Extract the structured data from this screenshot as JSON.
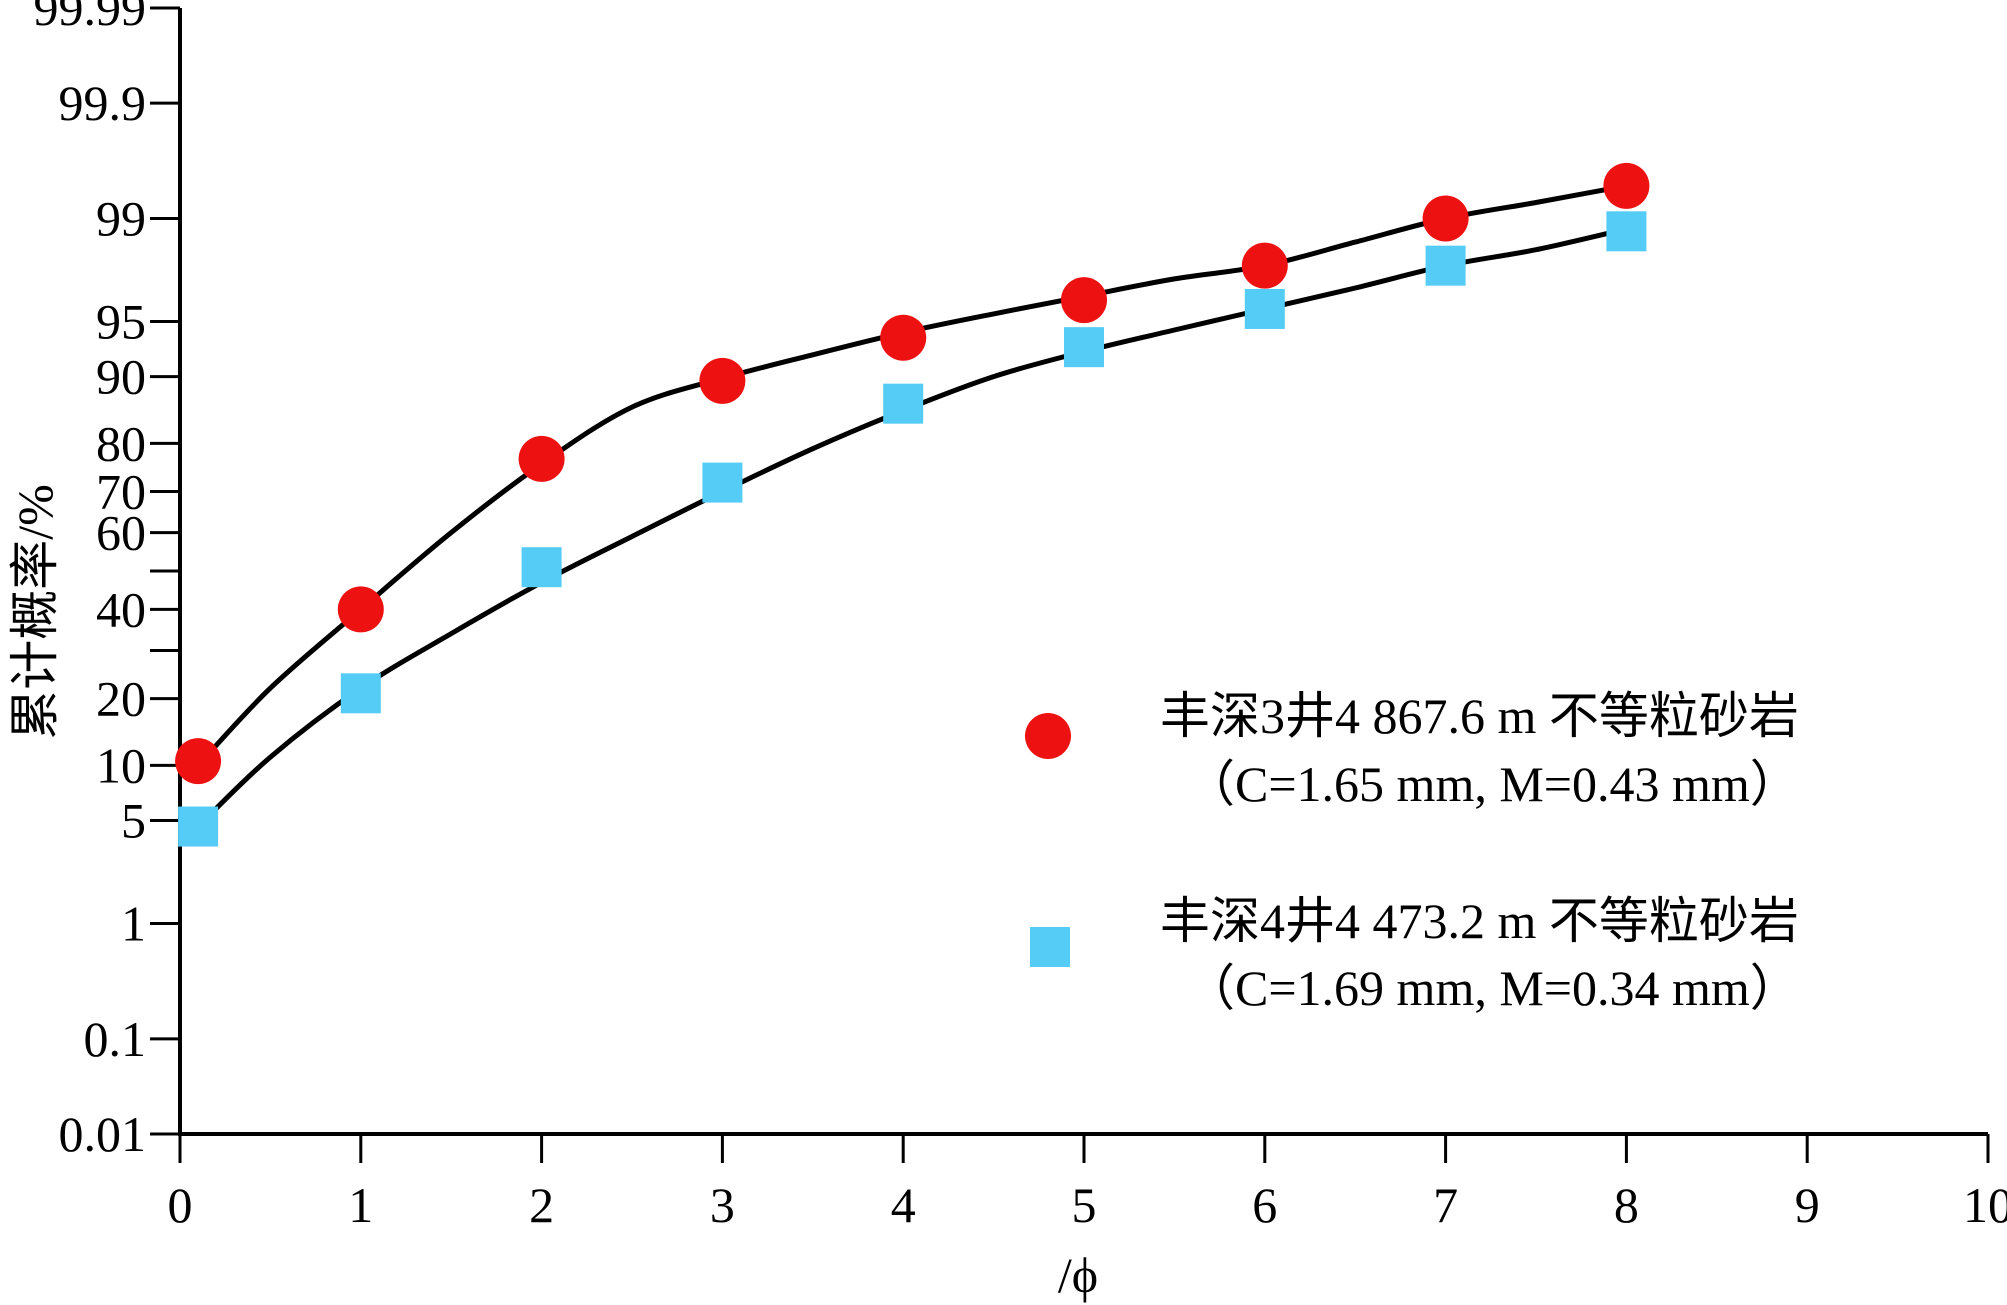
{
  "chart_data": {
    "type": "scatter",
    "title": "",
    "xlabel": "/ϕ",
    "ylabel": "累计概率/%",
    "xlim": [
      0,
      10
    ],
    "x_ticks": [
      "0",
      "1",
      "2",
      "3",
      "4",
      "5",
      "6",
      "7",
      "8",
      "9",
      "10"
    ],
    "y_scale": "probability",
    "y_ticks": [
      {
        "value": 0.01,
        "label": "0.01"
      },
      {
        "value": 0.1,
        "label": "0.1"
      },
      {
        "value": 1,
        "label": "1"
      },
      {
        "value": 5,
        "label": "5"
      },
      {
        "value": 10,
        "label": "10"
      },
      {
        "value": 20,
        "label": "20"
      },
      {
        "value": 30,
        "label": ""
      },
      {
        "value": 40,
        "label": "40"
      },
      {
        "value": 50,
        "label": ""
      },
      {
        "value": 60,
        "label": "60"
      },
      {
        "value": 70,
        "label": "70"
      },
      {
        "value": 80,
        "label": "80"
      },
      {
        "value": 90,
        "label": "90"
      },
      {
        "value": 95,
        "label": "95"
      },
      {
        "value": 99,
        "label": "99"
      },
      {
        "value": 99.9,
        "label": "99.9"
      },
      {
        "value": 99.99,
        "label": "99.99"
      }
    ],
    "series": [
      {
        "name": "丰深3井4 867.6 m 不等粒砂岩",
        "detail": "（C=1.65 mm, M=0.43 mm）",
        "marker": "circle",
        "color": "#ee1111",
        "x": [
          0.1,
          1,
          2,
          3,
          4,
          5,
          6,
          7,
          8
        ],
        "y": [
          10.5,
          40,
          77,
          89.5,
          93.8,
          96.3,
          97.8,
          99.0,
          99.45
        ],
        "fit_x": [
          0.1,
          0.5,
          1,
          1.5,
          2,
          2.5,
          3,
          3.5,
          4,
          4.5,
          5,
          5.5,
          6,
          6.5,
          7,
          7.5,
          8
        ],
        "fit_y": [
          10,
          22,
          40,
          60,
          76,
          86,
          89.8,
          92.3,
          94.2,
          95.5,
          96.5,
          97.3,
          97.8,
          98.5,
          99.0,
          99.25,
          99.45
        ]
      },
      {
        "name": "丰深4井4 473.2 m 不等粒砂岩",
        "detail": "（C=1.69 mm, M=0.34 mm）",
        "marker": "square",
        "color": "#55ccf5",
        "x": [
          0.1,
          1,
          2,
          3,
          4,
          5,
          6,
          7,
          8
        ],
        "y": [
          4.6,
          21,
          51,
          72,
          86.5,
          93,
          95.8,
          97.8,
          98.75
        ],
        "fit_x": [
          0.1,
          0.5,
          1,
          1.5,
          2,
          2.5,
          3,
          3.5,
          4,
          4.5,
          5,
          5.5,
          6,
          6.5,
          7,
          7.5,
          8
        ],
        "fit_y": [
          4.6,
          11,
          22,
          34,
          47,
          59,
          70,
          79,
          85.5,
          90,
          92.6,
          94.4,
          95.8,
          96.9,
          97.8,
          98.3,
          98.8
        ]
      }
    ],
    "legend": "center-right"
  }
}
